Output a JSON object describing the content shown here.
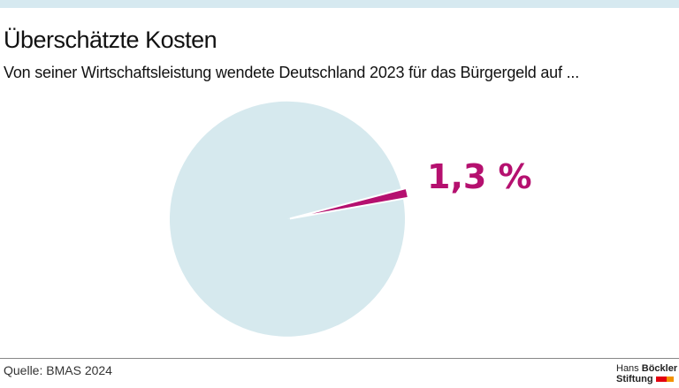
{
  "title": "Überschätzte Kosten",
  "subtitle": "Von seiner Wirtschaftsleistung wendete Deutschland 2023 für das Bürgergeld auf ...",
  "source": "Quelle: BMAS 2024",
  "logo": {
    "line1a": "Hans",
    "line1b": "Böckler",
    "line2": "Stiftung"
  },
  "colors": {
    "slice": "#b5106f",
    "rest": "#d6e9ee",
    "topbar": "#d6e9f0"
  },
  "chart_data": {
    "type": "pie",
    "slices": [
      {
        "label": "1,3 %",
        "value": 1.3,
        "color": "#b5106f"
      },
      {
        "label": "",
        "value": 98.7,
        "color": "#d6e9ee"
      }
    ]
  }
}
